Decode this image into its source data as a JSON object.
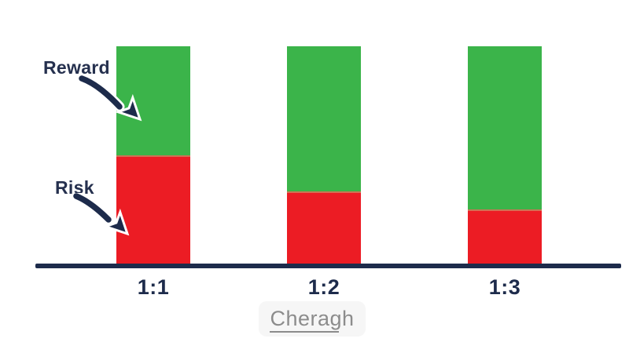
{
  "chart_data": {
    "type": "bar",
    "stacked": true,
    "normalized": true,
    "categories": [
      "1:1",
      "1:2",
      "1:3"
    ],
    "series": [
      {
        "name": "Risk",
        "color": "#ec1c24",
        "values": [
          1,
          1,
          1
        ]
      },
      {
        "name": "Reward",
        "color": "#3bb44a",
        "values": [
          1,
          2,
          3
        ]
      }
    ],
    "title": "",
    "xlabel": "",
    "ylabel": "",
    "legend": "none",
    "grid": false,
    "axis_line_color": "#1d2b4b",
    "annotations": [
      {
        "text": "Reward",
        "points_to": "green (reward) segment of the 1:1 bar"
      },
      {
        "text": "Risk",
        "points_to": "red (risk) segment of the 1:1 bar"
      }
    ]
  },
  "labels": {
    "reward": "Reward",
    "risk": "Risk"
  },
  "watermark": {
    "text": "Cheragh"
  },
  "colors": {
    "reward_green": "#3bb44a",
    "risk_red": "#ec1c24",
    "navy": "#1d2b4b",
    "watermark_text": "#8c8c8c",
    "watermark_bg": "#f6f6f6"
  }
}
